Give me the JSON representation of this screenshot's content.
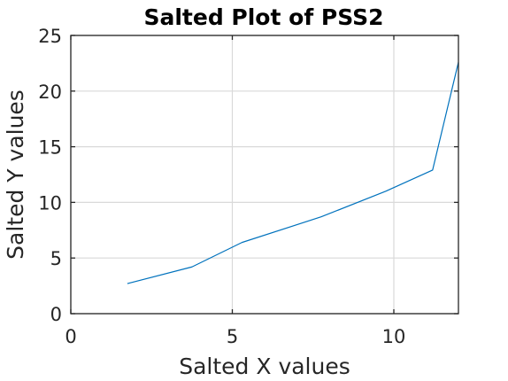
{
  "chart_data": {
    "type": "line",
    "title": "Salted Plot of PSS2",
    "xlabel": "Salted X values",
    "ylabel": "Salted Y values",
    "xlim": [
      0,
      12
    ],
    "ylim": [
      0,
      25
    ],
    "xticks": [
      0,
      5,
      10
    ],
    "yticks": [
      0,
      5,
      10,
      15,
      20,
      25
    ],
    "grid": true,
    "box": true,
    "series": [
      {
        "color": "#0072bd",
        "x": [
          1.75,
          3.75,
          5.3,
          7.75,
          9.75,
          11.2,
          12.0
        ],
        "y": [
          2.7,
          4.2,
          6.4,
          8.7,
          11.0,
          12.9,
          22.6
        ]
      }
    ]
  }
}
